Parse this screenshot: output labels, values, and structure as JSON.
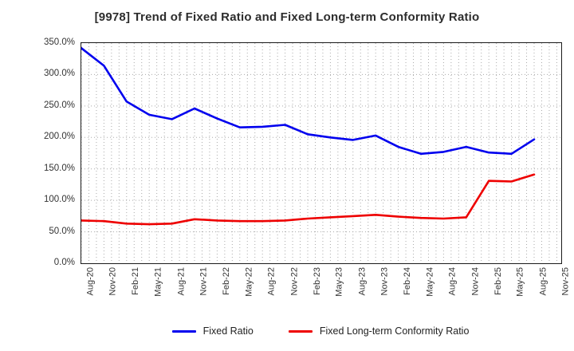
{
  "title": "[9978]  Trend of Fixed Ratio and Fixed Long-term Conformity Ratio",
  "colors": {
    "background": "#ffffff",
    "grid": "#aaaaaa",
    "frame": "#1a1a1a",
    "text": "#333333",
    "fixed_ratio_line": "#0000ee",
    "conformity_line": "#ee0000"
  },
  "chart_data": {
    "type": "line",
    "title": "[9978]  Trend of Fixed Ratio and Fixed Long-term Conformity Ratio",
    "x": [
      "Aug-20",
      "Nov-20",
      "Feb-21",
      "May-21",
      "Aug-21",
      "Nov-21",
      "Feb-22",
      "May-22",
      "Aug-22",
      "Nov-22",
      "Feb-23",
      "May-23",
      "Aug-23",
      "Nov-23",
      "Feb-24",
      "May-24",
      "Aug-24",
      "Nov-24",
      "Feb-25",
      "May-25",
      "Aug-25"
    ],
    "x_tick_labels": [
      "Aug-20",
      "Nov-20",
      "Feb-21",
      "May-21",
      "Aug-21",
      "Nov-21",
      "Feb-22",
      "May-22",
      "Aug-22",
      "Nov-22",
      "Feb-23",
      "May-23",
      "Aug-23",
      "Nov-23",
      "Feb-24",
      "May-24",
      "Aug-24",
      "Nov-24",
      "Feb-25",
      "May-25",
      "Aug-25",
      "Nov-25"
    ],
    "y_tick_labels": [
      "350.0%",
      "300.0%",
      "250.0%",
      "200.0%",
      "150.0%",
      "100.0%",
      "50.0%",
      "0.0%"
    ],
    "ylim": [
      0,
      350
    ],
    "y_tick_step": 50,
    "y_unit": "%",
    "grid": true,
    "minor_x_grid_per_interval": 3,
    "legend_position": "bottom",
    "series": [
      {
        "name": "Fixed Ratio",
        "color": "#0000ee",
        "values": [
          342,
          314,
          257,
          236,
          229,
          246,
          230,
          216,
          217,
          220,
          205,
          200,
          196,
          203,
          185,
          174,
          177,
          185,
          176,
          174,
          197
        ]
      },
      {
        "name": "Fixed Long-term Conformity Ratio",
        "color": "#ee0000",
        "values": [
          68,
          67,
          63,
          62,
          63,
          70,
          68,
          67,
          67,
          68,
          71,
          73,
          75,
          77,
          74,
          72,
          71,
          73,
          131,
          130,
          141
        ]
      }
    ]
  }
}
